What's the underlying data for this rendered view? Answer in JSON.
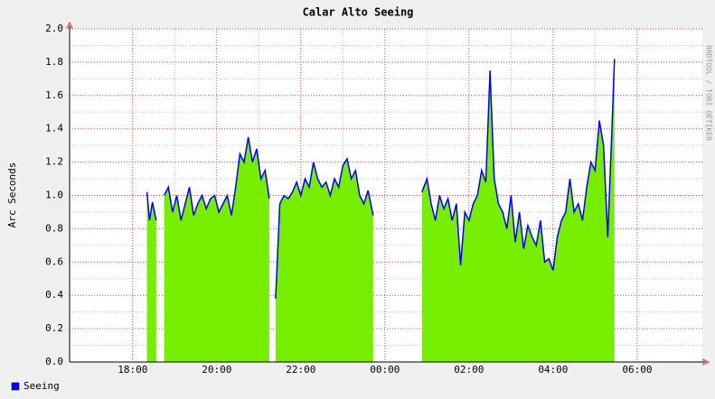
{
  "chart_data": {
    "type": "area",
    "title": "Calar Alto Seeing",
    "y_label": "Arc Seconds",
    "watermark": "RRDTOOL / TOBI OETIKER",
    "legend": "bottom-left",
    "grid": true,
    "x": [
      18.34,
      18.4,
      18.47,
      18.56,
      18.65,
      18.75,
      18.85,
      18.95,
      19.05,
      19.15,
      19.25,
      19.35,
      19.45,
      19.55,
      19.65,
      19.75,
      19.85,
      19.95,
      20.05,
      20.15,
      20.25,
      20.35,
      20.45,
      20.55,
      20.65,
      20.75,
      20.85,
      20.95,
      21.05,
      21.15,
      21.25,
      21.32,
      21.4,
      21.5,
      21.6,
      21.7,
      21.8,
      21.9,
      22.0,
      22.1,
      22.2,
      22.3,
      22.4,
      22.5,
      22.6,
      22.7,
      22.8,
      22.9,
      23.0,
      23.1,
      23.2,
      23.3,
      23.4,
      23.5,
      23.6,
      23.72,
      24.3,
      24.88,
      25.0,
      25.1,
      25.2,
      25.3,
      25.4,
      25.5,
      25.6,
      25.7,
      25.8,
      25.9,
      26.0,
      26.1,
      26.2,
      26.3,
      26.4,
      26.5,
      26.6,
      26.7,
      26.8,
      26.9,
      27.0,
      27.1,
      27.2,
      27.3,
      27.4,
      27.5,
      27.6,
      27.7,
      27.8,
      27.9,
      28.0,
      28.1,
      28.2,
      28.3,
      28.4,
      28.5,
      28.6,
      28.7,
      28.8,
      28.9,
      29.0,
      29.1,
      29.2,
      29.3,
      29.4,
      29.46
    ],
    "series": [
      {
        "name": "Seeing",
        "color": "#0000ff",
        "fill": "#77ee00",
        "values": [
          1.02,
          0.85,
          0.96,
          0.85,
          null,
          1.0,
          1.05,
          0.9,
          1.0,
          0.85,
          0.95,
          1.05,
          0.88,
          0.95,
          1.0,
          0.92,
          0.98,
          1.0,
          0.9,
          0.95,
          1.0,
          0.88,
          1.05,
          1.25,
          1.2,
          1.35,
          1.2,
          1.28,
          1.1,
          1.15,
          0.98,
          null,
          0.38,
          0.95,
          1.0,
          0.98,
          1.02,
          1.08,
          1.0,
          1.1,
          1.05,
          1.2,
          1.1,
          1.05,
          1.08,
          1.0,
          1.1,
          1.05,
          1.18,
          1.22,
          1.1,
          1.15,
          1.0,
          0.95,
          1.03,
          0.88,
          null,
          1.02,
          1.1,
          0.95,
          0.85,
          1.0,
          0.92,
          0.98,
          0.85,
          0.95,
          0.58,
          0.9,
          0.85,
          0.95,
          1.0,
          1.15,
          1.08,
          1.75,
          1.1,
          0.95,
          0.9,
          0.8,
          1.0,
          0.72,
          0.9,
          0.68,
          0.82,
          0.75,
          0.7,
          0.85,
          0.6,
          0.62,
          0.55,
          0.75,
          0.85,
          0.9,
          1.1,
          0.9,
          0.95,
          0.85,
          1.05,
          1.2,
          1.15,
          1.45,
          1.3,
          0.75,
          1.4,
          1.82
        ]
      }
    ],
    "xlim": [
      16.5,
      31.55
    ],
    "xticks": [
      {
        "value": 18,
        "label": "18:00"
      },
      {
        "value": 20,
        "label": "20:00"
      },
      {
        "value": 22,
        "label": "22:00"
      },
      {
        "value": 24,
        "label": "00:00"
      },
      {
        "value": 26,
        "label": "02:00"
      },
      {
        "value": 28,
        "label": "04:00"
      },
      {
        "value": 30,
        "label": "06:00"
      }
    ],
    "ylim": [
      0,
      2
    ],
    "yticks": [
      {
        "value": 0,
        "label": "0.0"
      },
      0.2,
      0.4,
      0.6,
      0.8,
      {
        "value": 1,
        "label": "1.0"
      },
      1.2,
      1.4,
      1.6,
      1.8,
      {
        "value": 2,
        "label": "2.0"
      }
    ]
  }
}
